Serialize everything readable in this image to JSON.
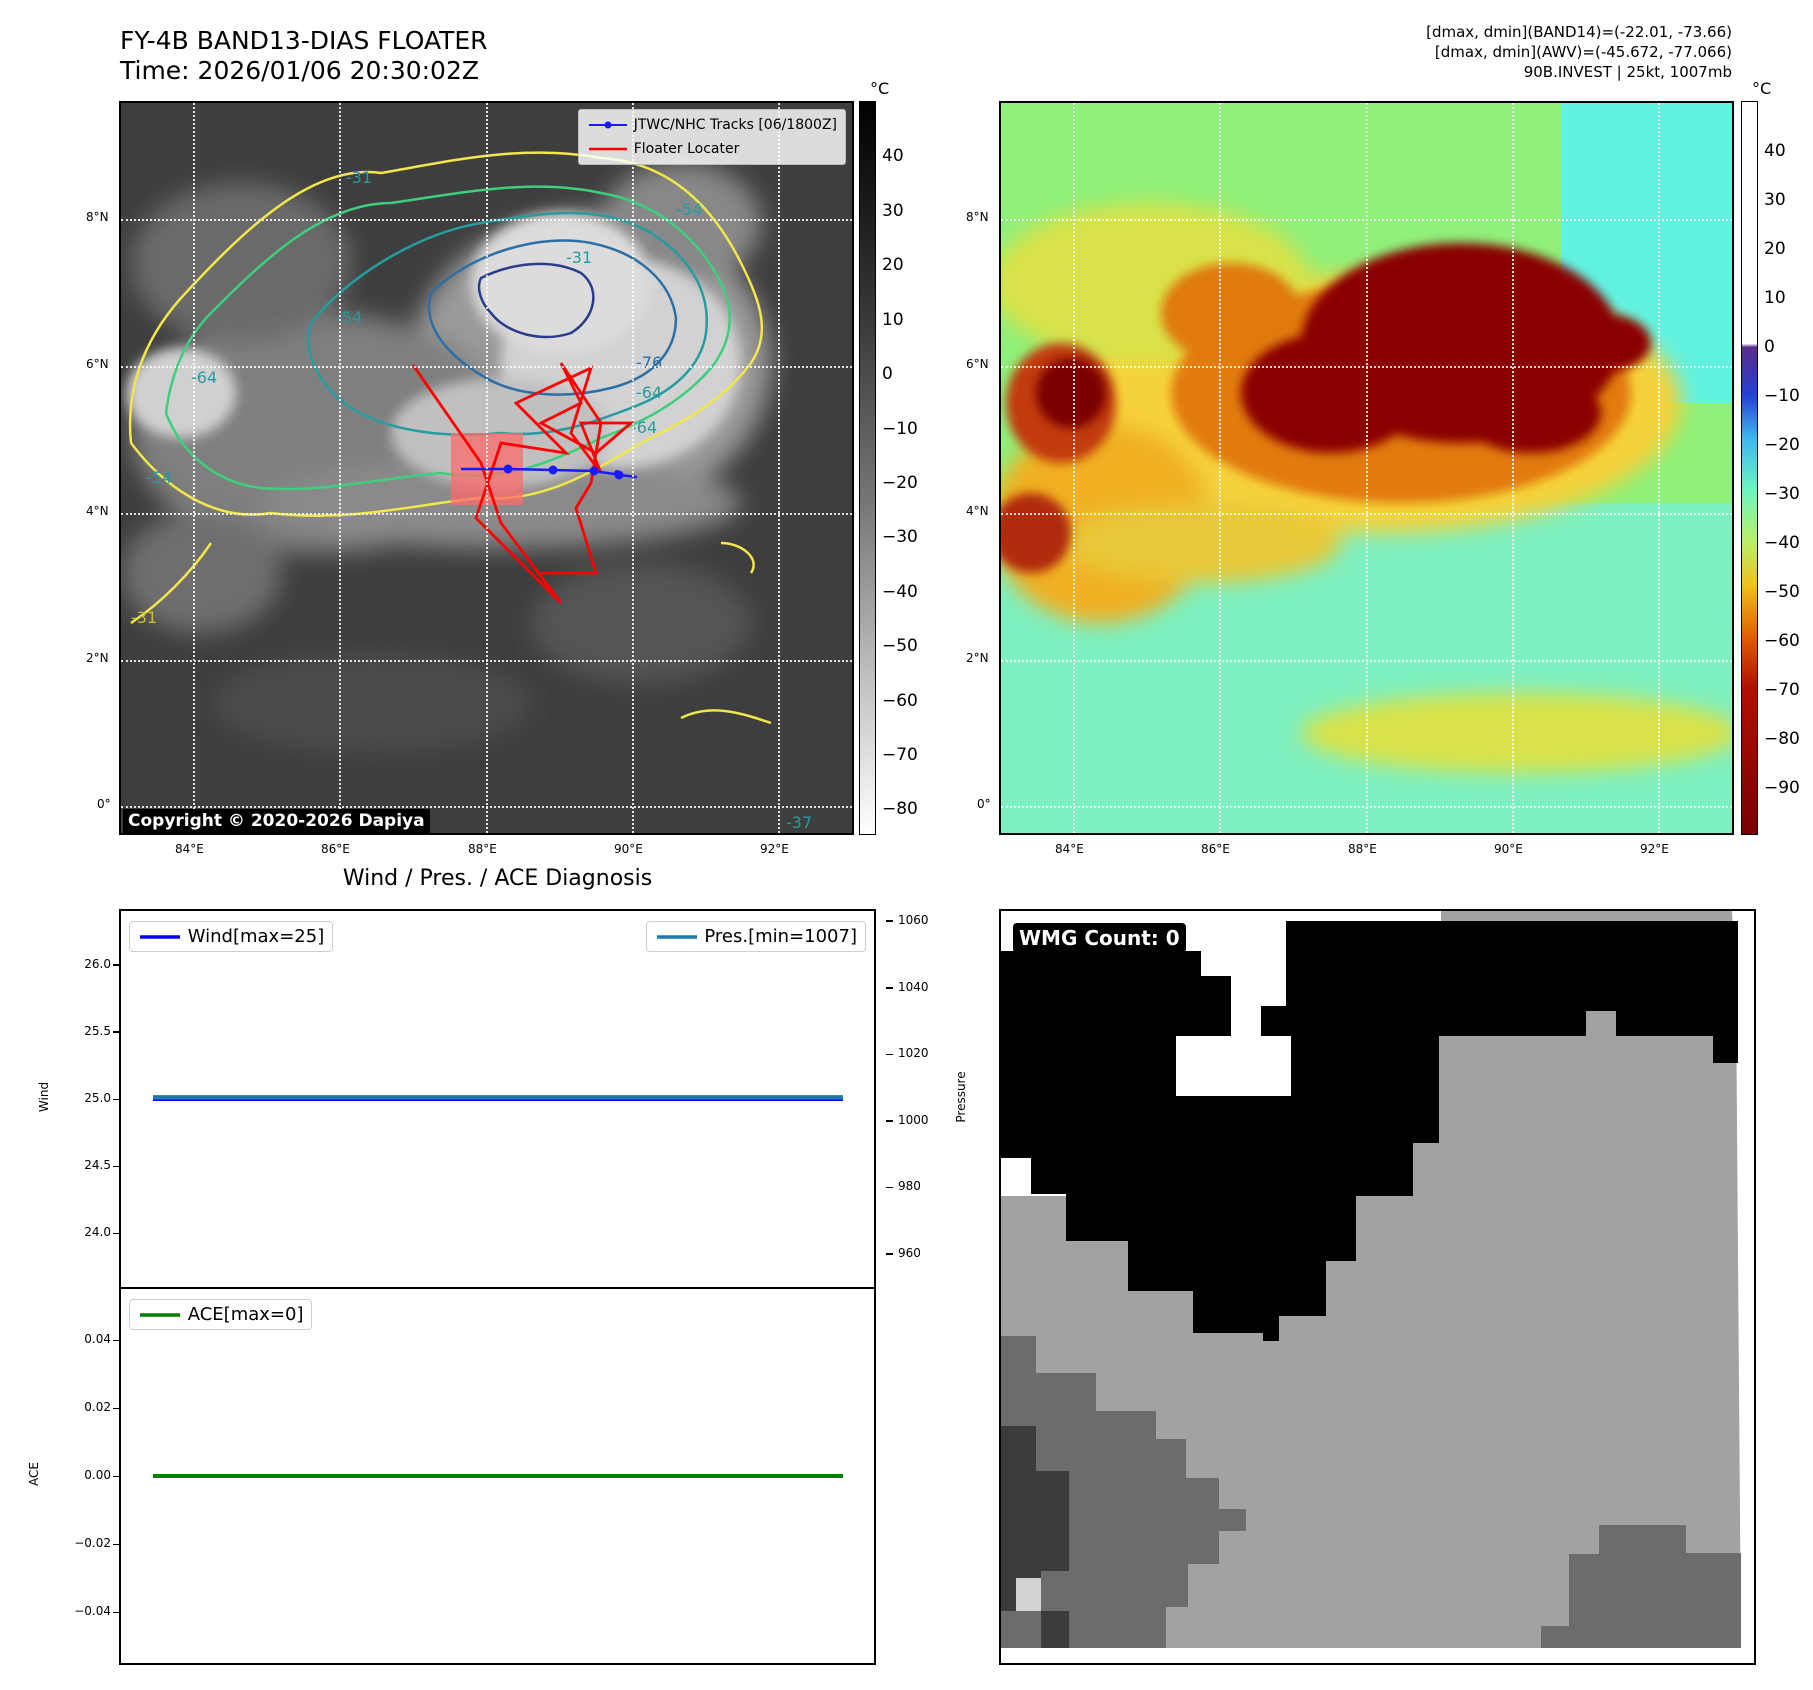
{
  "header": {
    "title": "FY-4B BAND13-DIAS FLOATER",
    "time": "Time: 2026/01/06 20:30:02Z",
    "info_line1": "[dmax, dmin](BAND14)=(-22.01, -73.66)",
    "info_line2": "[dmax, dmin](AWV)=(-45.672, -77.066)",
    "info_line3": "90B.INVEST | 25kt, 1007mb"
  },
  "ir_panel": {
    "legend": [
      "JTWC/NHC Tracks [06/1800Z]",
      "Floater Locater"
    ],
    "copyright": "Copyright © 2020-2026 Dapiya",
    "colorbar_unit": "°C",
    "colorbar_ticks": [
      "40",
      "30",
      "20",
      "10",
      "0",
      "−10",
      "−20",
      "−30",
      "−40",
      "−50",
      "−60",
      "−70",
      "−80"
    ],
    "contour_labels": [
      "-31",
      "-54",
      "-54",
      "-64",
      "-76",
      "-64",
      "-64",
      "-54",
      "-31",
      "-37",
      "-31"
    ],
    "x_ticks": [
      "84°E",
      "86°E",
      "88°E",
      "90°E",
      "92°E"
    ],
    "y_ticks": [
      "8°N",
      "6°N",
      "4°N",
      "2°N",
      "0°"
    ],
    "track_color": "#1a1aff",
    "locater_color": "#ff0000"
  },
  "awv_panel": {
    "colorbar_unit": "°C",
    "colorbar_ticks": [
      "40",
      "30",
      "20",
      "10",
      "0",
      "−10",
      "−20",
      "−30",
      "−40",
      "−50",
      "−60",
      "−70",
      "−80",
      "−90"
    ],
    "x_ticks": [
      "84°E",
      "86°E",
      "88°E",
      "90°E",
      "92°E"
    ],
    "y_ticks": [
      "8°N",
      "6°N",
      "4°N",
      "2°N",
      "0°"
    ]
  },
  "diag_panel": {
    "title": "Wind / Pres. / ACE Diagnosis",
    "wind_legend": "Wind[max=25]",
    "pres_legend": "Pres.[min=1007]",
    "ace_legend": "ACE[max=0]",
    "wind_ylabel": "Wind",
    "pres_ylabel": "Pressure",
    "ace_ylabel": "ACE",
    "wind_ticks": [
      "26.0",
      "25.5",
      "25.0",
      "24.5",
      "24.0"
    ],
    "pres_ticks": [
      "1060",
      "1040",
      "1020",
      "1000",
      "980",
      "960"
    ],
    "ace_ticks": [
      "0.04",
      "0.02",
      "0.00",
      "−0.02",
      "−0.04"
    ]
  },
  "wmg_panel": {
    "badge": "WMG Count: 0"
  },
  "chart_data": [
    {
      "type": "line",
      "title": "Wind / Pres. / ACE Diagnosis",
      "series": [
        {
          "name": "Wind[max=25]",
          "x": [
            0,
            1
          ],
          "values": [
            25,
            25
          ],
          "color": "#0000ff"
        },
        {
          "name": "Pres.[min=1007]",
          "x": [
            0,
            1
          ],
          "values": [
            1007,
            1007
          ],
          "color": "#1f77b4"
        }
      ],
      "ylabel": "Wind",
      "ylim": [
        23.6,
        26.4
      ],
      "y2label": "Pressure",
      "y2lim": [
        950,
        1063
      ]
    },
    {
      "type": "line",
      "series": [
        {
          "name": "ACE[max=0]",
          "x": [
            0,
            1
          ],
          "values": [
            0,
            0
          ],
          "color": "#008000"
        }
      ],
      "ylabel": "ACE",
      "ylim": [
        -0.055,
        0.055
      ]
    }
  ]
}
